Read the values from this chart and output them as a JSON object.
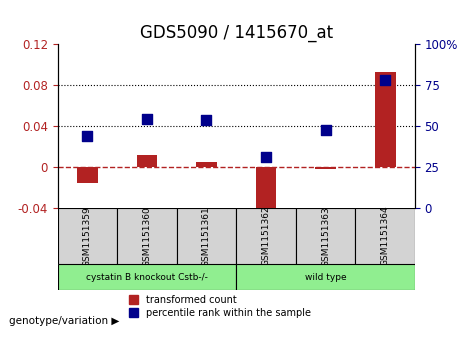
{
  "title": "GDS5090 / 1415670_at",
  "samples": [
    "GSM1151359",
    "GSM1151360",
    "GSM1151361",
    "GSM1151362",
    "GSM1151363",
    "GSM1151364"
  ],
  "transformed_count": [
    -0.016,
    0.012,
    0.005,
    -0.047,
    -0.002,
    0.092
  ],
  "percentile_rank": [
    0.03,
    0.047,
    0.046,
    0.01,
    0.036,
    0.085
  ],
  "ylim_left": [
    -0.04,
    0.12
  ],
  "ylim_right": [
    0,
    100
  ],
  "yticks_left": [
    -0.04,
    0.0,
    0.04,
    0.08,
    0.12
  ],
  "yticks_right": [
    0,
    25,
    50,
    75,
    100
  ],
  "ytick_labels_left": [
    "-0.04",
    "0",
    "0.04",
    "0.08",
    "0.12"
  ],
  "ytick_labels_right": [
    "0",
    "25",
    "50",
    "75",
    "100%"
  ],
  "hlines": [
    0.04,
    0.08
  ],
  "bar_color": "#b22222",
  "dot_color": "#00008b",
  "zero_line_color": "#b22222",
  "zero_line_style": "--",
  "hline_style": ":",
  "hline_color": "#000000",
  "group1_label": "cystatin B knockout Cstb-/-",
  "group2_label": "wild type",
  "group1_color": "#90ee90",
  "group2_color": "#90ee90",
  "group1_samples": [
    0,
    1,
    2
  ],
  "group2_samples": [
    3,
    4,
    5
  ],
  "genotype_label": "genotype/variation",
  "legend_red": "transformed count",
  "legend_blue": "percentile rank within the sample",
  "bar_width": 0.35,
  "dot_size": 60,
  "title_fontsize": 12,
  "tick_fontsize": 8.5,
  "label_fontsize": 8.5
}
